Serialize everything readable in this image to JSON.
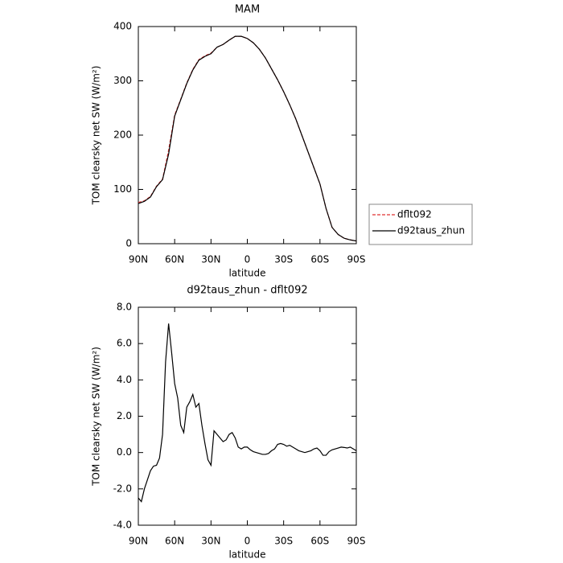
{
  "chart_data": [
    {
      "type": "line",
      "title": "MAM",
      "xlabel": "latitude",
      "ylabel": "TOM clearsky net SW (W/m²)",
      "x": [
        90,
        85,
        80,
        75,
        70,
        65,
        60,
        55,
        50,
        45,
        40,
        35,
        30,
        25,
        20,
        15,
        10,
        5,
        0,
        -5,
        -10,
        -15,
        -20,
        -25,
        -30,
        -35,
        -40,
        -45,
        -50,
        -55,
        -60,
        -65,
        -70,
        -75,
        -80,
        -85,
        -90
      ],
      "series": [
        {
          "name": "dflt092",
          "color": "#e03030",
          "line_style": "dashed",
          "values": [
            76,
            79,
            87,
            106,
            119,
            172,
            237,
            266,
            296,
            321,
            339,
            346,
            351,
            362,
            367,
            375,
            382,
            382,
            378,
            370,
            358,
            342,
            322,
            302,
            280,
            256,
            230,
            200,
            170,
            140,
            110,
            65,
            30,
            17,
            10,
            7,
            5
          ]
        },
        {
          "name": "d92taus_zhun",
          "color": "#000000",
          "line_style": "solid",
          "values": [
            74,
            78,
            86,
            105,
            118,
            165,
            235,
            265,
            295,
            320,
            338,
            345,
            350,
            362,
            367,
            375,
            382,
            382,
            378,
            370,
            358,
            342,
            322,
            302,
            280,
            256,
            230,
            200,
            170,
            140,
            110,
            65,
            30,
            17,
            10,
            7,
            5
          ]
        }
      ],
      "xlim": [
        90,
        -90
      ],
      "xticks": [
        {
          "value": 90,
          "label": "90N"
        },
        {
          "value": 60,
          "label": "60N"
        },
        {
          "value": 30,
          "label": "30N"
        },
        0,
        {
          "value": -30,
          "label": "30S"
        },
        {
          "value": -60,
          "label": "60S"
        },
        {
          "value": -90,
          "label": "90S"
        }
      ],
      "ylim": [
        0,
        400
      ],
      "yticks": [
        0,
        100,
        200,
        300,
        400
      ],
      "legend": "right"
    },
    {
      "type": "line",
      "title": "d92taus_zhun - dflt092",
      "xlabel": "latitude",
      "ylabel": "TOM clearsky net SW (W/m²)",
      "x": [
        90,
        87.5,
        85,
        82.5,
        80,
        77.5,
        75,
        72.5,
        70,
        67.5,
        65,
        62.5,
        60,
        57.5,
        55,
        52.5,
        50,
        47.5,
        45,
        42.5,
        40,
        37.5,
        35,
        32.5,
        30,
        27.5,
        25,
        22.5,
        20,
        17.5,
        15,
        12.5,
        10,
        7.5,
        5,
        2.5,
        0,
        -2.5,
        -5,
        -7.5,
        -10,
        -12.5,
        -15,
        -17.5,
        -20,
        -22.5,
        -25,
        -27.5,
        -30,
        -32.5,
        -35,
        -37.5,
        -40,
        -42.5,
        -45,
        -47.5,
        -50,
        -52.5,
        -55,
        -57.5,
        -60,
        -62.5,
        -65,
        -67.5,
        -70,
        -72.5,
        -75,
        -77.5,
        -80,
        -82.5,
        -85,
        -87.5,
        -90
      ],
      "values": [
        -2.5,
        -2.7,
        -2.0,
        -1.5,
        -1.0,
        -0.75,
        -0.7,
        -0.3,
        1.0,
        5.0,
        7.1,
        5.5,
        3.8,
        3.0,
        1.5,
        1.1,
        2.5,
        2.8,
        3.2,
        2.5,
        2.7,
        1.5,
        0.5,
        -0.4,
        -0.7,
        1.2,
        1.0,
        0.8,
        0.6,
        0.7,
        1.0,
        1.1,
        0.8,
        0.3,
        0.2,
        0.3,
        0.3,
        0.15,
        0.05,
        0.0,
        -0.05,
        -0.1,
        -0.1,
        -0.05,
        0.1,
        0.2,
        0.45,
        0.5,
        0.45,
        0.35,
        0.4,
        0.3,
        0.2,
        0.1,
        0.05,
        0.0,
        0.05,
        0.1,
        0.2,
        0.25,
        0.1,
        -0.15,
        -0.15,
        0.05,
        0.15,
        0.2,
        0.25,
        0.3,
        0.28,
        0.25,
        0.3,
        0.2,
        0.1
      ],
      "color": "#000000",
      "xlim": [
        90,
        -90
      ],
      "xticks": [
        {
          "value": 90,
          "label": "90N"
        },
        {
          "value": 60,
          "label": "60N"
        },
        {
          "value": 30,
          "label": "30N"
        },
        0,
        {
          "value": -30,
          "label": "30S"
        },
        {
          "value": -60,
          "label": "60S"
        },
        {
          "value": -90,
          "label": "90S"
        }
      ],
      "ylim": [
        -4,
        8
      ],
      "yticks": [
        {
          "value": -4,
          "label": "-4.0"
        },
        {
          "value": -2,
          "label": "-2.0"
        },
        {
          "value": 0,
          "label": "0.0"
        },
        {
          "value": 2,
          "label": "2.0"
        },
        {
          "value": 4,
          "label": "4.0"
        },
        {
          "value": 6,
          "label": "6.0"
        },
        {
          "value": 8,
          "label": "8.0"
        }
      ]
    }
  ]
}
